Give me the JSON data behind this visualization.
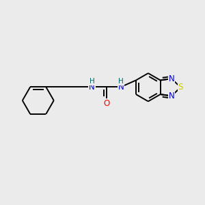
{
  "bg_color": "#ebebeb",
  "bond_color": "#000000",
  "bond_width": 1.4,
  "atom_colors": {
    "N": "#0000cc",
    "O": "#ff0000",
    "S": "#cccc00",
    "H": "#006666",
    "C": "#000000"
  },
  "font_size_atoms": 8.5,
  "font_size_H": 7.5
}
